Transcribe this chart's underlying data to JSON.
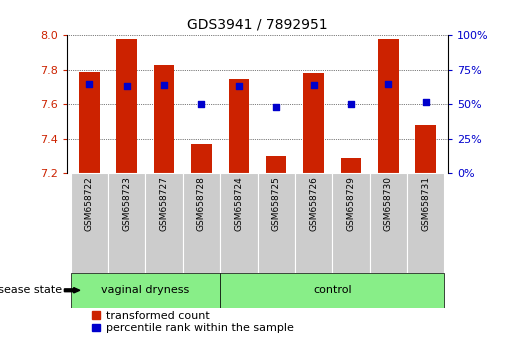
{
  "title": "GDS3941 / 7892951",
  "samples": [
    "GSM658722",
    "GSM658723",
    "GSM658727",
    "GSM658728",
    "GSM658724",
    "GSM658725",
    "GSM658726",
    "GSM658729",
    "GSM658730",
    "GSM658731"
  ],
  "bar_tops": [
    7.79,
    7.98,
    7.83,
    7.37,
    7.75,
    7.3,
    7.78,
    7.29,
    7.98,
    7.48
  ],
  "bar_bottom": 7.2,
  "percentile_values": [
    65,
    63,
    64,
    50,
    63,
    48,
    64,
    50,
    65,
    52
  ],
  "ylim_left": [
    7.2,
    8.0
  ],
  "ylim_right": [
    0,
    100
  ],
  "yticks_left": [
    7.2,
    7.4,
    7.6,
    7.8,
    8.0
  ],
  "yticks_right": [
    0,
    25,
    50,
    75,
    100
  ],
  "group_labels": [
    "vaginal dryness",
    "control"
  ],
  "vaginal_dryness_indices": [
    0,
    1,
    2,
    3
  ],
  "control_indices": [
    4,
    5,
    6,
    7,
    8,
    9
  ],
  "bar_color": "#cc2200",
  "blue_color": "#0000cc",
  "label_color_left": "#cc2200",
  "label_color_right": "#0000cc",
  "legend_items": [
    "transformed count",
    "percentile rank within the sample"
  ],
  "disease_state_label": "disease state",
  "green_color": "#88ee88",
  "gray_color": "#cccccc",
  "bar_width": 0.55
}
